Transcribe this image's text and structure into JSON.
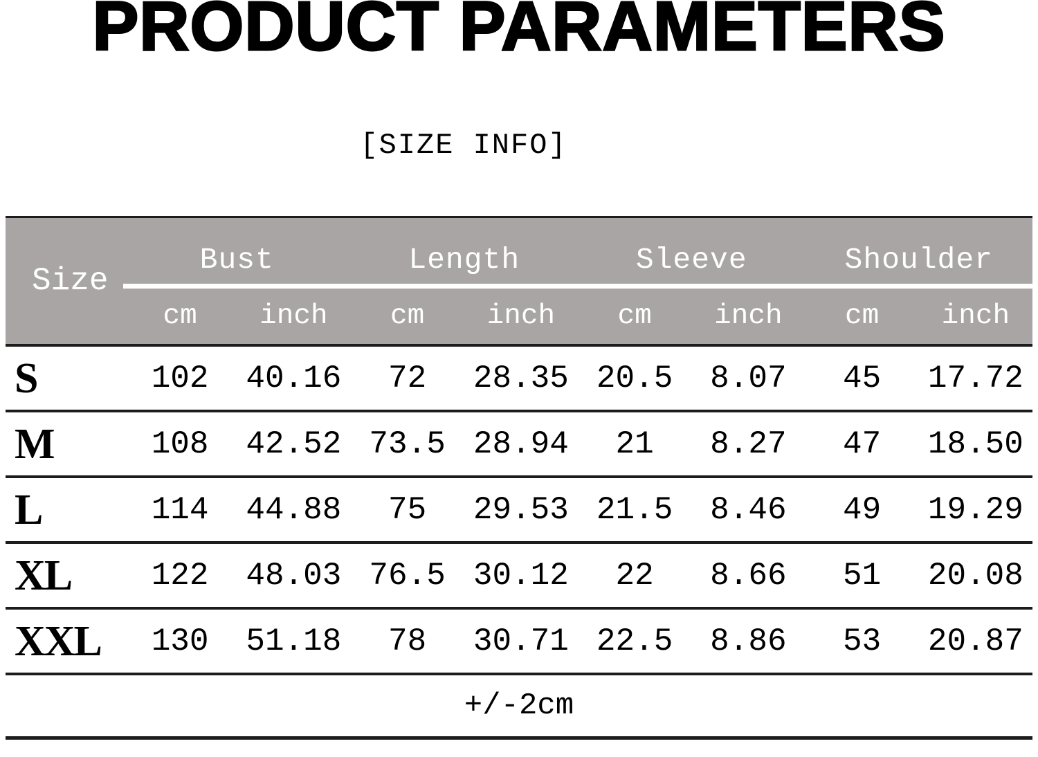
{
  "page": {
    "title": "PRODUCT PARAMETERS",
    "subtitle": "[SIZE INFO]"
  },
  "table": {
    "size_header": "Size",
    "group_headers": [
      "Bust",
      "Length",
      "Sleeve",
      "Shoulder"
    ],
    "unit_headers": [
      "cm",
      "inch",
      "cm",
      "inch",
      "cm",
      "inch",
      "cm",
      "inch"
    ],
    "rows": [
      {
        "size": "S",
        "values": [
          "102",
          "40.16",
          "72",
          "28.35",
          "20.5",
          "8.07",
          "45",
          "17.72"
        ]
      },
      {
        "size": "M",
        "values": [
          "108",
          "42.52",
          "73.5",
          "28.94",
          "21",
          "8.27",
          "47",
          "18.50"
        ]
      },
      {
        "size": "L",
        "values": [
          "114",
          "44.88",
          "75",
          "29.53",
          "21.5",
          "8.46",
          "49",
          "19.29"
        ]
      },
      {
        "size": "XL",
        "values": [
          "122",
          "48.03",
          "76.5",
          "30.12",
          "22",
          "8.66",
          "51",
          "20.08"
        ]
      },
      {
        "size": "XXL",
        "values": [
          "130",
          "51.18",
          "78",
          "30.71",
          "22.5",
          "8.86",
          "53",
          "20.87"
        ]
      }
    ],
    "tolerance_note": "+/-2cm"
  },
  "colors": {
    "header_bg": "#a9a5a5",
    "header_text": "#ffffff",
    "row_line": "#1c1c1c",
    "text": "#000000"
  }
}
